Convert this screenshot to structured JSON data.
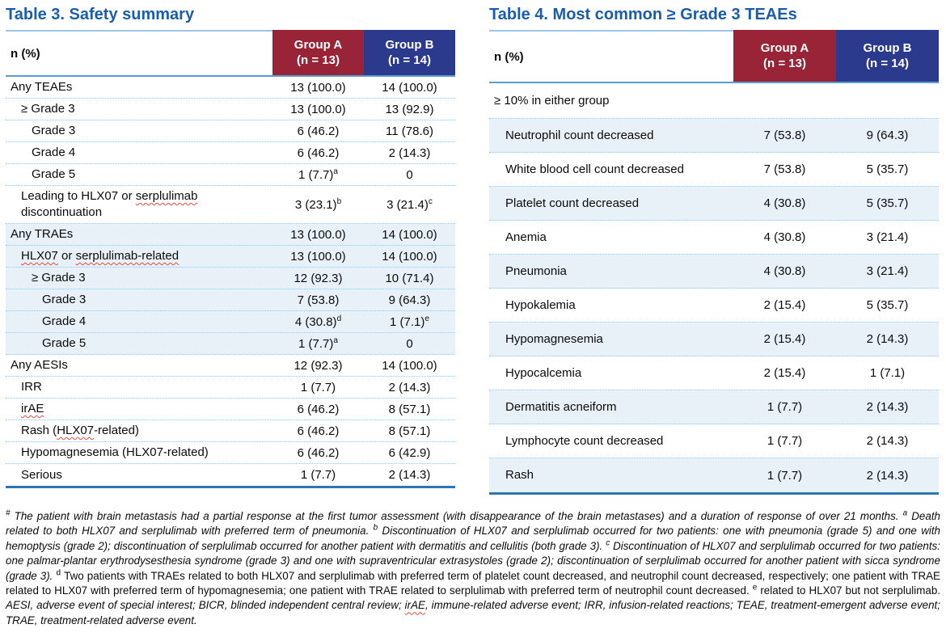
{
  "colors": {
    "title": "#1A5DAB",
    "group_a": "#992437",
    "group_b": "#2B3A8C",
    "row_shade": "#E9F1F8",
    "rule_light": "#9DC3E6",
    "rule_medium": "#5B9BD5",
    "rule_bottom": "#2E75B6",
    "squiggle": "#E8483F"
  },
  "table3": {
    "title": "Table 3. Safety summary",
    "header": {
      "metric": "n (%)",
      "group_a_name": "Group A",
      "group_a_n": "(n = 13)",
      "group_b_name": "Group B",
      "group_b_n": "(n = 14)"
    },
    "rows": [
      {
        "label": "Any TEAEs",
        "indent": 0,
        "a": "13 (100.0)",
        "b": "14 (100.0)"
      },
      {
        "label": "≥ Grade 3",
        "indent": 1,
        "a": "13 (100.0)",
        "b": "13 (92.9)"
      },
      {
        "label": "Grade 3",
        "indent": 2,
        "a": "6 (46.2)",
        "b": "11 (78.6)"
      },
      {
        "label": "Grade 4",
        "indent": 2,
        "a": "6 (46.2)",
        "b": "2 (14.3)"
      },
      {
        "label": "Grade 5",
        "indent": 2,
        "a": "1 (7.7)",
        "a_sup": "a",
        "b": "0"
      },
      {
        "label": "Leading to HLX07 or serplulimab discontinuation",
        "indent": 1,
        "wavy": [
          "serplulimab"
        ],
        "a": "3 (23.1)",
        "a_sup": "b",
        "b": "3 (21.4)",
        "b_sup": "c",
        "tall": true
      },
      {
        "label": "Any TRAEs",
        "indent": 0,
        "a": "13 (100.0)",
        "b": "14 (100.0)",
        "shaded": true
      },
      {
        "label": "HLX07 or serplulimab-related",
        "indent": 1,
        "wavy": [
          "HLX07",
          "serplulimab-related"
        ],
        "a": "13 (100.0)",
        "b": "14 (100.0)",
        "shaded": true
      },
      {
        "label": "≥ Grade 3",
        "indent": 2,
        "a": "12 (92.3)",
        "b": "10 (71.4)",
        "shaded": true
      },
      {
        "label": "Grade 3",
        "indent": 3,
        "a": "7 (53.8)",
        "b": "9 (64.3)",
        "shaded": true
      },
      {
        "label": "Grade 4",
        "indent": 3,
        "a": "4 (30.8)",
        "a_sup": "d",
        "b": "1 (7.1)",
        "b_sup": "e",
        "shaded": true
      },
      {
        "label": "Grade 5",
        "indent": 3,
        "a": "1 (7.7)",
        "a_sup": "a",
        "b": "0",
        "shaded": true
      },
      {
        "label": "Any AESIs",
        "indent": 0,
        "a": "12 (92.3)",
        "b": "14 (100.0)"
      },
      {
        "label": "IRR",
        "indent": 1,
        "a": "1 (7.7)",
        "b": "2 (14.3)"
      },
      {
        "label": "irAE",
        "indent": 1,
        "wavy": [
          "irAE"
        ],
        "a": "6 (46.2)",
        "b": "8 (57.1)"
      },
      {
        "label": "Rash (HLX07-related)",
        "indent": 1,
        "wavy": [
          "HLX07"
        ],
        "a": "6 (46.2)",
        "b": "8 (57.1)"
      },
      {
        "label": "Hypomagnesemia (HLX07-related)",
        "indent": 1,
        "a": "6 (46.2)",
        "b": "6 (42.9)"
      },
      {
        "label": "Serious",
        "indent": 1,
        "a": "1 (7.7)",
        "b": "2 (14.3)"
      }
    ]
  },
  "table4": {
    "title": "Table 4. Most common ≥ Grade 3 TEAEs",
    "header": {
      "metric": "n (%)",
      "group_a_name": "Group A",
      "group_a_n": "(n = 13)",
      "group_b_name": "Group B",
      "group_b_n": "(n = 14)"
    },
    "subheader": "≥ 10% in either group",
    "rows": [
      {
        "label": "Neutrophil count decreased",
        "indent": 1,
        "a": "7 (53.8)",
        "b": "9 (64.3)",
        "shaded": true
      },
      {
        "label": "White blood cell count decreased",
        "indent": 1,
        "a": "7 (53.8)",
        "b": "5 (35.7)"
      },
      {
        "label": "Platelet count decreased",
        "indent": 1,
        "a": "4 (30.8)",
        "b": "5 (35.7)",
        "shaded": true
      },
      {
        "label": "Anemia",
        "indent": 1,
        "a": "4 (30.8)",
        "b": "3 (21.4)"
      },
      {
        "label": "Pneumonia",
        "indent": 1,
        "a": "4 (30.8)",
        "b": "3 (21.4)",
        "shaded": true
      },
      {
        "label": "Hypokalemia",
        "indent": 1,
        "a": "2 (15.4)",
        "b": "5 (35.7)"
      },
      {
        "label": "Hypomagnesemia",
        "indent": 1,
        "a": "2 (15.4)",
        "b": "2 (14.3)",
        "shaded": true
      },
      {
        "label": "Hypocalcemia",
        "indent": 1,
        "a": "2 (15.4)",
        "b": "1 (7.1)"
      },
      {
        "label": "Dermatitis acneiform",
        "indent": 1,
        "a": "1 (7.7)",
        "b": "2 (14.3)",
        "shaded": true
      },
      {
        "label": "Lymphocyte count decreased",
        "indent": 1,
        "a": "1 (7.7)",
        "b": "2 (14.3)"
      },
      {
        "label": "Rash",
        "indent": 1,
        "a": "1 (7.7)",
        "b": "2 (14.3)",
        "shaded": true
      }
    ]
  },
  "footnote": {
    "segments": [
      {
        "sup": "#",
        "style": "italic",
        "text": "The patient with brain metastasis had a partial response at the first tumor assessment (with disappearance of the brain metastases) and a duration of response of over 21 months. "
      },
      {
        "sup": "a",
        "style": "italic",
        "text": "Death related to both HLX07 and serplulimab with preferred term of pneumonia. "
      },
      {
        "sup": "b",
        "style": "italic",
        "text": "Discontinuation of HLX07 and serplulimab occurred for two patients: one with pneumonia (grade 5) and one with hemoptysis (grade 2); discontinuation of serplulimab occurred for another patient with dermatitis and cellulitis (both grade 3). "
      },
      {
        "sup": "c",
        "style": "italic",
        "text": "Discontinuation of HLX07 and serplulimab occurred for two patients: one palmar-plantar erythrodysesthesia syndrome (grade 3) and one with supraventricular extrasystoles (grade 2); discontinuation of serplulimab occurred for another patient with sicca syndrome (grade 3). "
      },
      {
        "sup": "d",
        "style": "normal",
        "text": "Two patients with TRAEs related to both HLX07 and serplulimab with preferred term of platelet count decreased, and neutrophil count decreased, respectively; one patient with TRAE related to HLX07 with preferred term of hypomagnesemia; one patient with TRAE related to serplulimab with preferred term of neutrophil count decreased. "
      },
      {
        "sup": "e",
        "style": "normal",
        "text": "related to HLX07 but not serplulimab. "
      },
      {
        "style": "italic",
        "text": "AESI, adverse event of special interest; BICR, blinded independent central review; "
      },
      {
        "style": "italic",
        "wavy": true,
        "text": "irAE"
      },
      {
        "style": "italic",
        "text": ", immune-related adverse event; IRR, infusion-related reactions; TEAE, treatment-emergent adverse event; TRAE, treatment-related adverse event."
      }
    ]
  }
}
